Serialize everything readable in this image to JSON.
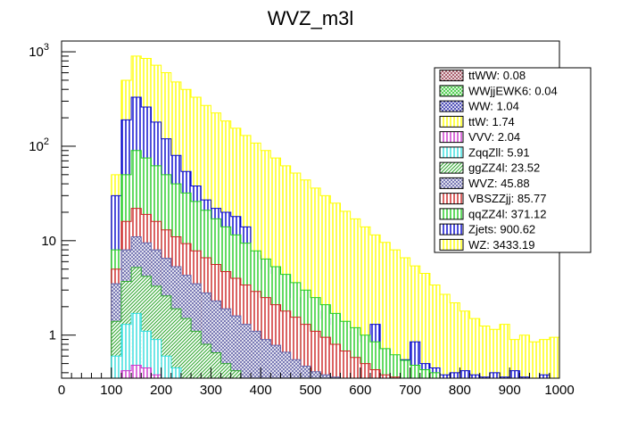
{
  "chart_data": {
    "type": "bar",
    "stacked": true,
    "title": "WVZ_m3l",
    "xlabel": "",
    "ylabel": "",
    "xlim": [
      0,
      1000
    ],
    "ylim": [
      0.35,
      1300
    ],
    "y_scale": "log",
    "bin_width": 20,
    "x_ticks": [
      0,
      100,
      200,
      300,
      400,
      500,
      600,
      700,
      800,
      900,
      1000
    ],
    "y_ticks": [
      {
        "value": 1,
        "base": "1",
        "exp": ""
      },
      {
        "value": 10,
        "base": "10",
        "exp": ""
      },
      {
        "value": 100,
        "base": "10",
        "exp": "2"
      },
      {
        "value": 1000,
        "base": "10",
        "exp": "3"
      }
    ],
    "grid": false,
    "legend_position": "top-right",
    "series": [
      {
        "name": "ttWW: 0.08",
        "color": "#9e4a5a",
        "pattern": "cross",
        "bins": []
      },
      {
        "name": "WWjjEWK6: 0.04",
        "color": "#3ec93e",
        "pattern": "cross",
        "bins": []
      },
      {
        "name": "WW: 1.04",
        "color": "#3a3ab0",
        "pattern": "cross",
        "bins": []
      },
      {
        "name": "ttW: 1.74",
        "color": "#ffff00",
        "pattern": "vertical",
        "bins": []
      },
      {
        "name": "VVV: 2.04",
        "color": "#cc33cc",
        "pattern": "vertical",
        "bins": [
          [
            120,
            0.42
          ],
          [
            140,
            0.48
          ],
          [
            160,
            0.45
          ],
          [
            180,
            0.38
          ]
        ]
      },
      {
        "name": "ZqqZll: 5.91",
        "color": "#33dddd",
        "pattern": "vertical",
        "bins": [
          [
            100,
            0.6
          ],
          [
            120,
            1.3
          ],
          [
            140,
            1.7
          ],
          [
            160,
            1.1
          ],
          [
            180,
            0.9
          ],
          [
            200,
            0.6
          ],
          [
            220,
            0.45
          ]
        ]
      },
      {
        "name": "ggZZ4l: 23.52",
        "color": "#33aa33",
        "pattern": "diag",
        "bins": [
          [
            100,
            1.4
          ],
          [
            120,
            3.7
          ],
          [
            140,
            5.2
          ],
          [
            160,
            4.2
          ],
          [
            180,
            3.3
          ],
          [
            200,
            2.6
          ],
          [
            220,
            1.9
          ],
          [
            240,
            1.5
          ],
          [
            260,
            1.1
          ],
          [
            280,
            0.8
          ],
          [
            300,
            0.65
          ],
          [
            320,
            0.5
          ],
          [
            340,
            0.42
          ]
        ]
      },
      {
        "name": "WVZ: 45.88",
        "color": "#6666aa",
        "pattern": "cross",
        "bins": [
          [
            100,
            3.5
          ],
          [
            120,
            8.0
          ],
          [
            140,
            11.0
          ],
          [
            160,
            9.5
          ],
          [
            180,
            8.0
          ],
          [
            200,
            6.5
          ],
          [
            220,
            5.3
          ],
          [
            240,
            4.3
          ],
          [
            260,
            3.5
          ],
          [
            280,
            2.8
          ],
          [
            300,
            2.3
          ],
          [
            320,
            1.9
          ],
          [
            340,
            1.6
          ],
          [
            360,
            1.3
          ],
          [
            380,
            1.1
          ],
          [
            400,
            0.9
          ],
          [
            420,
            0.78
          ],
          [
            440,
            0.66
          ],
          [
            460,
            0.55
          ],
          [
            480,
            0.47
          ],
          [
            500,
            0.41
          ],
          [
            520,
            0.38
          ],
          [
            540,
            0.36
          ]
        ]
      },
      {
        "name": "VBSZZjj: 85.77",
        "color": "#cc2222",
        "pattern": "vertical",
        "bins": [
          [
            100,
            5.0
          ],
          [
            120,
            16.0
          ],
          [
            140,
            22.0
          ],
          [
            160,
            19.0
          ],
          [
            180,
            16.0
          ],
          [
            200,
            13.0
          ],
          [
            220,
            11.0
          ],
          [
            240,
            9.3
          ],
          [
            260,
            7.8
          ],
          [
            280,
            6.6
          ],
          [
            300,
            5.6
          ],
          [
            320,
            4.7
          ],
          [
            340,
            4.0
          ],
          [
            360,
            3.4
          ],
          [
            380,
            2.9
          ],
          [
            400,
            2.5
          ],
          [
            420,
            2.1
          ],
          [
            440,
            1.8
          ],
          [
            460,
            1.55
          ],
          [
            480,
            1.3
          ],
          [
            500,
            1.1
          ],
          [
            520,
            0.95
          ],
          [
            540,
            0.8
          ],
          [
            560,
            0.68
          ],
          [
            580,
            0.58
          ],
          [
            600,
            0.5
          ],
          [
            620,
            0.43
          ],
          [
            640,
            0.38
          ],
          [
            660,
            0.36
          ]
        ]
      },
      {
        "name": "qqZZ4l: 371.12",
        "color": "#22cc22",
        "pattern": "vertical",
        "bins": [
          [
            100,
            8.0
          ],
          [
            120,
            50.0
          ],
          [
            140,
            90.0
          ],
          [
            160,
            75.0
          ],
          [
            180,
            62.0
          ],
          [
            200,
            50.0
          ],
          [
            220,
            40.0
          ],
          [
            240,
            32.0
          ],
          [
            260,
            26.0
          ],
          [
            280,
            21.0
          ],
          [
            300,
            17.0
          ],
          [
            320,
            14.0
          ],
          [
            340,
            11.5
          ],
          [
            360,
            9.4
          ],
          [
            380,
            7.8
          ],
          [
            400,
            6.4
          ],
          [
            420,
            5.3
          ],
          [
            440,
            4.4
          ],
          [
            460,
            3.6
          ],
          [
            480,
            3.0
          ],
          [
            500,
            2.5
          ],
          [
            520,
            2.1
          ],
          [
            540,
            1.7
          ],
          [
            560,
            1.4
          ],
          [
            580,
            1.2
          ],
          [
            600,
            1.0
          ],
          [
            620,
            0.85
          ],
          [
            640,
            0.72
          ],
          [
            660,
            0.62
          ],
          [
            680,
            0.54
          ],
          [
            700,
            0.48
          ],
          [
            720,
            0.43
          ],
          [
            740,
            0.4
          ]
        ]
      },
      {
        "name": "Zjets: 900.62",
        "color": "#0000cc",
        "pattern": "vertical",
        "bins": [
          [
            100,
            30.0
          ],
          [
            120,
            190.0
          ],
          [
            140,
            330.0
          ],
          [
            160,
            260.0
          ],
          [
            180,
            180.0
          ],
          [
            200,
            120.0
          ],
          [
            220,
            80.0
          ],
          [
            240,
            54.0
          ],
          [
            260,
            38.0
          ],
          [
            280,
            27.0
          ],
          [
            300,
            22.0
          ],
          [
            320,
            20.0
          ],
          [
            340,
            18.0
          ],
          [
            360,
            14.0
          ],
          [
            380,
            7.0
          ],
          [
            400,
            5.0
          ],
          [
            420,
            4.5
          ],
          [
            440,
            3.5
          ],
          [
            460,
            2.5
          ],
          [
            480,
            2.2
          ],
          [
            500,
            1.8
          ],
          [
            520,
            1.5
          ],
          [
            540,
            1.3
          ],
          [
            560,
            1.1
          ],
          [
            580,
            1.0
          ],
          [
            600,
            0.85
          ],
          [
            620,
            1.3
          ],
          [
            640,
            0.7
          ],
          [
            660,
            0.6
          ],
          [
            680,
            0.55
          ],
          [
            700,
            0.85
          ],
          [
            720,
            0.5
          ],
          [
            740,
            0.45
          ],
          [
            760,
            0.38
          ],
          [
            780,
            0.4
          ],
          [
            800,
            0.42
          ],
          [
            820,
            0.38
          ],
          [
            840,
            0.36
          ],
          [
            860,
            0.4
          ],
          [
            880,
            0.36
          ],
          [
            900,
            0.42
          ],
          [
            920,
            0.36
          ],
          [
            940,
            0.35
          ],
          [
            960,
            0.38
          ]
        ]
      },
      {
        "name": "WZ: 3433.19",
        "color": "#ffff00",
        "pattern": "vertical",
        "bins": [
          [
            100,
            50.0
          ],
          [
            120,
            500.0
          ],
          [
            140,
            900.0
          ],
          [
            160,
            850.0
          ],
          [
            180,
            720.0
          ],
          [
            200,
            600.0
          ],
          [
            220,
            480.0
          ],
          [
            240,
            400.0
          ],
          [
            260,
            330.0
          ],
          [
            280,
            270.0
          ],
          [
            300,
            225.0
          ],
          [
            320,
            185.0
          ],
          [
            340,
            155.0
          ],
          [
            360,
            130.0
          ],
          [
            380,
            108.0
          ],
          [
            400,
            90.0
          ],
          [
            420,
            75.0
          ],
          [
            440,
            62.0
          ],
          [
            460,
            52.0
          ],
          [
            480,
            44.0
          ],
          [
            500,
            36.0
          ],
          [
            520,
            30.0
          ],
          [
            540,
            25.0
          ],
          [
            560,
            20.5
          ],
          [
            580,
            17.0
          ],
          [
            600,
            14.0
          ],
          [
            620,
            11.5
          ],
          [
            640,
            9.6
          ],
          [
            660,
            8.0
          ],
          [
            680,
            6.6
          ],
          [
            700,
            5.4
          ],
          [
            720,
            4.5
          ],
          [
            740,
            3.4
          ],
          [
            760,
            2.7
          ],
          [
            780,
            2.2
          ],
          [
            800,
            1.8
          ],
          [
            820,
            1.5
          ],
          [
            840,
            1.25
          ],
          [
            860,
            1.15
          ],
          [
            880,
            1.3
          ],
          [
            900,
            0.9
          ],
          [
            920,
            1.0
          ],
          [
            940,
            0.85
          ],
          [
            960,
            0.9
          ],
          [
            980,
            0.95
          ]
        ]
      }
    ]
  }
}
